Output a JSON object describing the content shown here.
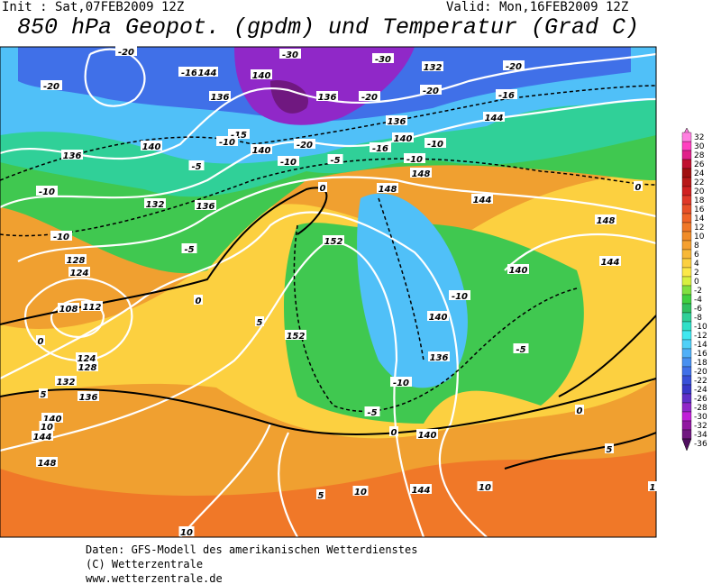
{
  "header": {
    "init": "Init : Sat,07FEB2009 12Z",
    "valid": "Valid: Mon,16FEB2009 12Z",
    "title": "850 hPa Geopot. (gpdm) und Temperatur (Grad C)"
  },
  "colorbar": {
    "levels": [
      {
        "value": 32,
        "color": "#ff80e0"
      },
      {
        "value": 30,
        "color": "#ff40c0"
      },
      {
        "value": 28,
        "color": "#e0208a"
      },
      {
        "value": 26,
        "color": "#c01030"
      },
      {
        "value": 24,
        "color": "#a01010"
      },
      {
        "value": 22,
        "color": "#b81818"
      },
      {
        "value": 20,
        "color": "#d02020"
      },
      {
        "value": 18,
        "color": "#e03828"
      },
      {
        "value": 16,
        "color": "#e85028"
      },
      {
        "value": 14,
        "color": "#f06428"
      },
      {
        "value": 12,
        "color": "#f07828"
      },
      {
        "value": 10,
        "color": "#f08c28"
      },
      {
        "value": 8,
        "color": "#f5a030"
      },
      {
        "value": 6,
        "color": "#f8b838"
      },
      {
        "value": 4,
        "color": "#fcd040"
      },
      {
        "value": 2,
        "color": "#fce848"
      },
      {
        "value": 0,
        "color": "#d8f040"
      },
      {
        "value": -2,
        "color": "#80e040"
      },
      {
        "value": -4,
        "color": "#40d040"
      },
      {
        "value": -6,
        "color": "#30c060"
      },
      {
        "value": -8,
        "color": "#30d098"
      },
      {
        "value": -10,
        "color": "#30e0c8"
      },
      {
        "value": -12,
        "color": "#40e8f0"
      },
      {
        "value": -14,
        "color": "#50d0f8"
      },
      {
        "value": -16,
        "color": "#50b0f8"
      },
      {
        "value": -18,
        "color": "#4890f0"
      },
      {
        "value": -20,
        "color": "#4070e8"
      },
      {
        "value": -22,
        "color": "#3850d8"
      },
      {
        "value": -24,
        "color": "#3838c8"
      },
      {
        "value": -26,
        "color": "#6030c8"
      },
      {
        "value": -28,
        "color": "#9028c8"
      },
      {
        "value": -30,
        "color": "#c020d8"
      },
      {
        "value": -32,
        "color": "#9018a0"
      },
      {
        "value": -34,
        "color": "#701880"
      },
      {
        "value": -36,
        "color": "#501060"
      }
    ]
  },
  "map_labels": [
    "-20",
    "-20",
    "-16",
    "144",
    "-30",
    "140",
    "-30",
    "132",
    "-20",
    "-20",
    "-20",
    "-16",
    "136",
    "136",
    "144",
    "136",
    "-15",
    "140",
    "-10",
    "140",
    "-20",
    "140",
    "-10",
    "-16",
    "-10",
    "-5",
    "-10",
    "148",
    "136",
    "-5",
    "-10",
    "132",
    "136",
    "148",
    "144",
    "0",
    "0",
    "-10",
    "-5",
    "152",
    "148",
    "144",
    "128",
    "124",
    "140",
    "-10",
    "0",
    "112",
    "108",
    "140",
    "5",
    "152",
    "-5",
    "124",
    "0",
    "128",
    "136",
    "132",
    "5",
    "-10",
    "136",
    "-5",
    "0",
    "140",
    "10",
    "144",
    "140",
    "0",
    "5",
    "148",
    "5",
    "10",
    "144",
    "10",
    "1",
    "10"
  ],
  "footer": {
    "lines": [
      "Daten: GFS-Modell des amerikanischen Wetterdienstes",
      "(C) Wetterzentrale",
      "www.wetterzentrale.de"
    ]
  }
}
